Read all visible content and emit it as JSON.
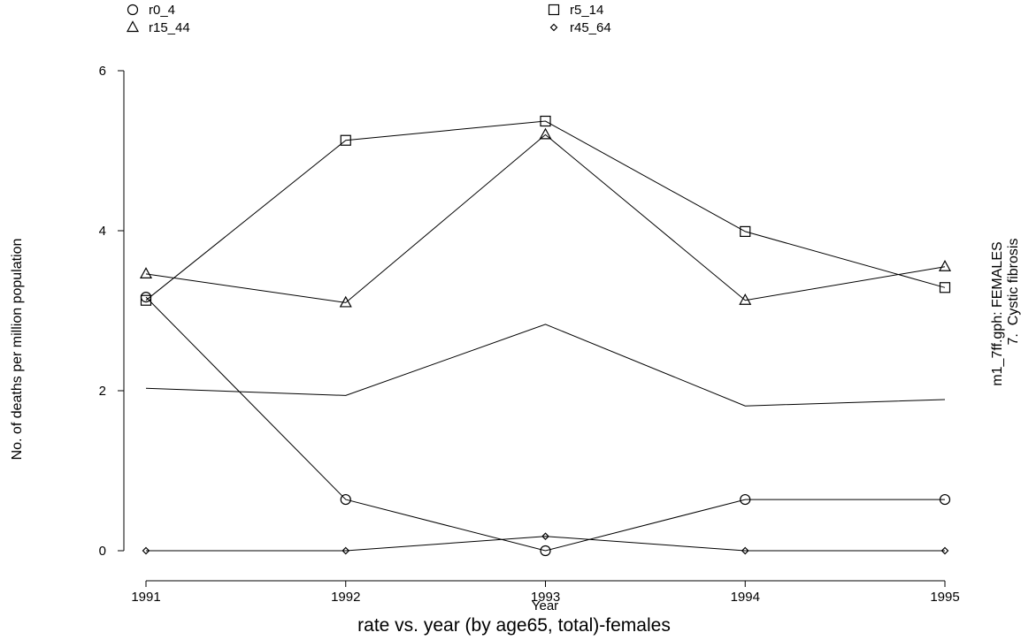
{
  "chart_data": {
    "type": "line",
    "title": "rate vs. year (by age65, total)-females",
    "xlabel": "Year",
    "ylabel": "No. of deaths per million population",
    "side_label_1": "m1_7ff.gph: FEMALES",
    "side_label_2": "7.  Cystic fibrosis",
    "x": [
      1991,
      1992,
      1993,
      1994,
      1995
    ],
    "x_tick_labels": [
      "1991",
      "1992",
      "1993",
      "1994",
      "1995"
    ],
    "y_ticks": [
      0,
      2,
      4,
      6
    ],
    "y_tick_labels": [
      "0",
      "2",
      "4",
      "6"
    ],
    "xlim": [
      1991,
      1995
    ],
    "ylim": [
      0,
      6
    ],
    "grid": false,
    "legend_position": "top",
    "series": [
      {
        "name": "r0_4",
        "marker": "circle",
        "values": [
          3.17,
          0.64,
          0.0,
          0.64,
          0.64
        ]
      },
      {
        "name": "r5_14",
        "marker": "square",
        "values": [
          3.13,
          5.13,
          5.37,
          3.99,
          3.29
        ]
      },
      {
        "name": "r15_44",
        "marker": "triangle",
        "values": [
          3.46,
          3.1,
          5.2,
          3.13,
          3.55
        ]
      },
      {
        "name": "r45_64",
        "marker": "diamond",
        "values": [
          0.0,
          0.0,
          0.18,
          0.0,
          0.0
        ]
      },
      {
        "name": "",
        "marker": "none",
        "values": [
          2.03,
          1.94,
          2.83,
          1.81,
          1.89
        ]
      }
    ]
  }
}
